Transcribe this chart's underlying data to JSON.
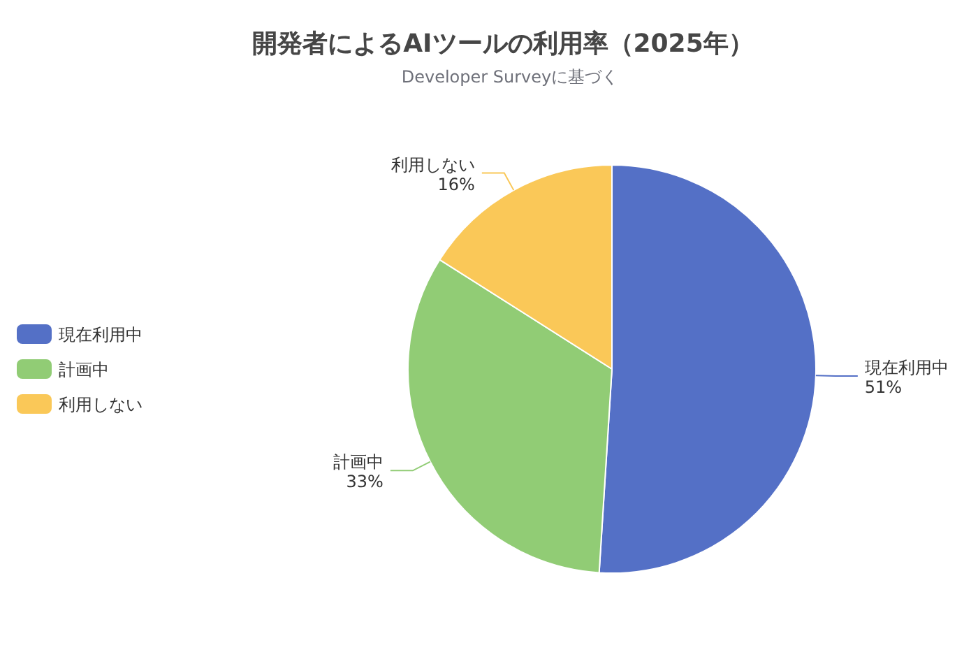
{
  "chart_data": {
    "type": "pie",
    "title": "開発者によるAIツールの利用率（2025年）",
    "subtitle": "Developer Surveyに基づく",
    "categories": [
      "現在利用中",
      "計画中",
      "利用しない"
    ],
    "values": [
      51,
      33,
      16
    ],
    "colors": [
      "#5470c6",
      "#91cc75",
      "#fac858"
    ],
    "value_labels": [
      "51%",
      "33%",
      "16%"
    ],
    "legend": "left"
  }
}
